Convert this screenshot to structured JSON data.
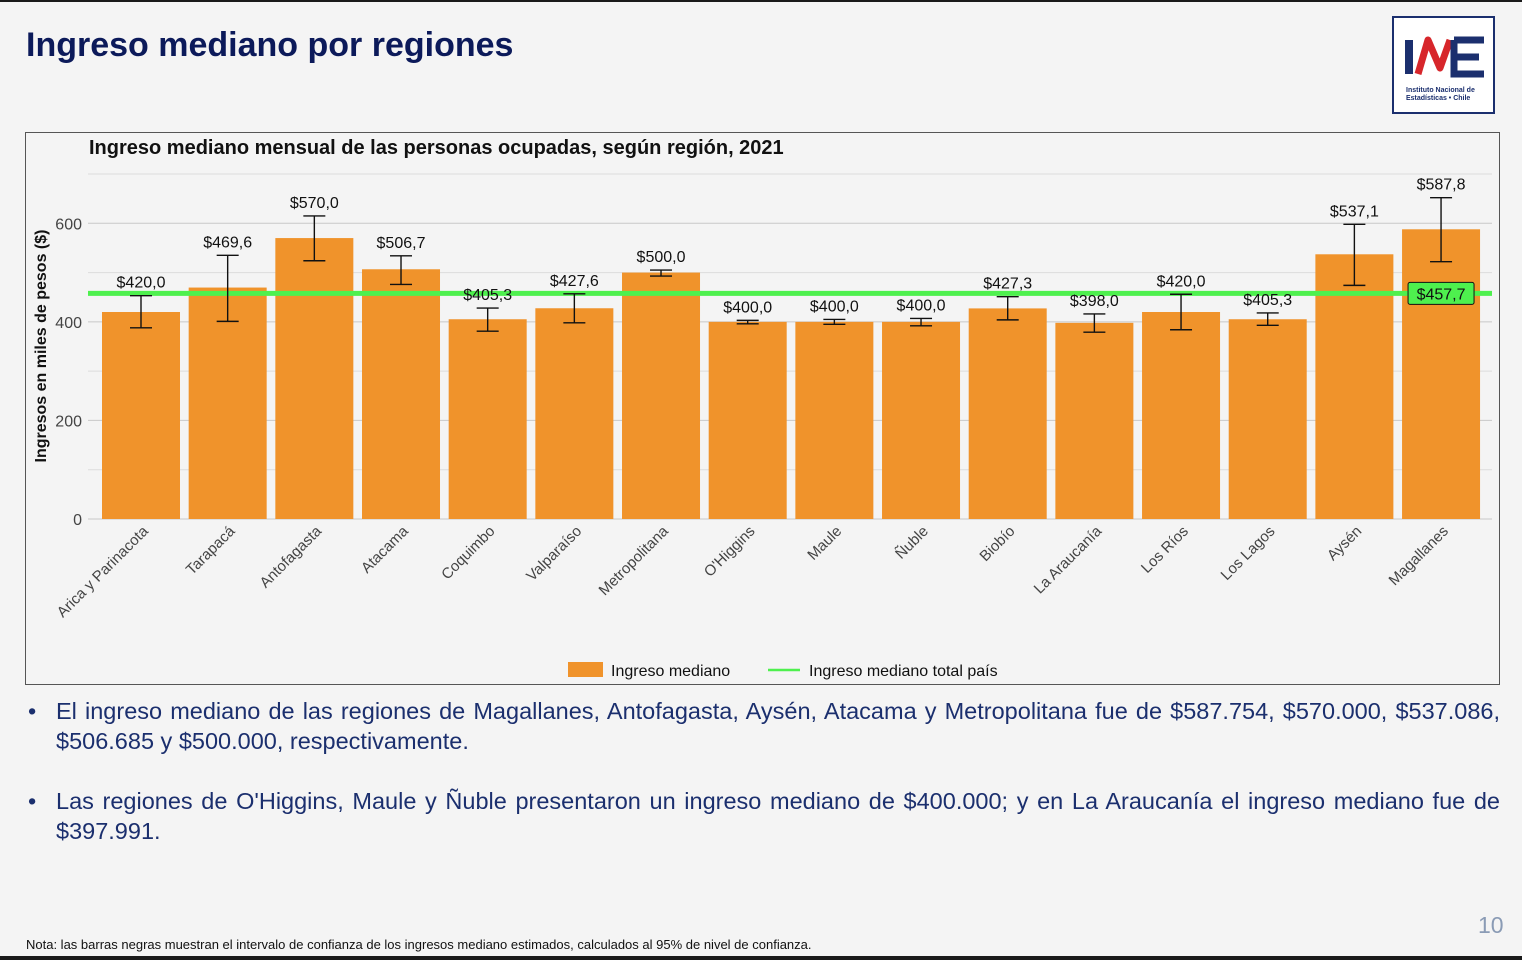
{
  "slide": {
    "title": "Ingreso mediano por regiones",
    "page_number": "10",
    "note": "Nota: las barras negras muestran el intervalo de confianza de los ingresos mediano estimados, calculados al 95% de nivel de confianza."
  },
  "logo": {
    "lines": [
      "Instituto Nacional de",
      "Estadísticas • Chile"
    ],
    "brand_colors": {
      "blue": "#1b2f6e",
      "red": "#d7262b"
    }
  },
  "bullets": [
    "El ingreso mediano de las regiones de Magallanes, Antofagasta, Aysén, Atacama y Metropolitana fue de $587.754, $570.000, $537.086, $506.685 y $500.000, respectivamente.",
    "Las regiones de O'Higgins, Maule y Ñuble presentaron un ingreso mediano de $400.000; y en La Araucanía el ingreso mediano fue de $397.991."
  ],
  "chart_data": {
    "type": "bar",
    "title": "Ingreso mediano mensual de las personas ocupadas, según región, 2021",
    "ylabel": "Ingresos en miles de pesos ($)",
    "xlabel": "",
    "ylim": [
      0,
      700
    ],
    "yticks": [
      0,
      200,
      400,
      600
    ],
    "grid": true,
    "categories": [
      "Arica y Parinacota",
      "Tarapacá",
      "Antofagasta",
      "Atacama",
      "Coquimbo",
      "Valparaíso",
      "Metropolitana",
      "O'Higgins",
      "Maule",
      "Ñuble",
      "Biobío",
      "La Araucanía",
      "Los Ríos",
      "Los Lagos",
      "Aysén",
      "Magallanes"
    ],
    "series": [
      {
        "name": "Ingreso mediano",
        "color": "#f0932b",
        "values": [
          420.0,
          469.6,
          570.0,
          506.7,
          405.3,
          427.6,
          500.0,
          400.0,
          400.0,
          400.0,
          427.3,
          398.0,
          420.0,
          405.3,
          537.1,
          587.8
        ],
        "labels": [
          "$420,0",
          "$469,6",
          "$570,0",
          "$506,7",
          "$405,3",
          "$427,6",
          "$500,0",
          "$400,0",
          "$400,0",
          "$400,0",
          "$427,3",
          "$398,0",
          "$420,0",
          "$405,3",
          "$537,1",
          "$587,8"
        ],
        "ci_low": [
          388,
          401,
          524,
          476,
          381,
          398,
          493,
          396,
          395,
          392,
          404,
          379,
          384,
          393,
          474,
          522
        ],
        "ci_high": [
          453,
          535,
          615,
          534,
          428,
          457,
          505,
          403,
          405,
          407,
          451,
          416,
          456,
          418,
          598,
          652
        ]
      }
    ],
    "reference_line": {
      "name": "Ingreso mediano total país",
      "value": 457.7,
      "label": "$457,7",
      "color": "#4ef04e"
    },
    "legend": {
      "position": "bottom",
      "entries": [
        "Ingreso mediano",
        "Ingreso mediano total país"
      ]
    }
  }
}
